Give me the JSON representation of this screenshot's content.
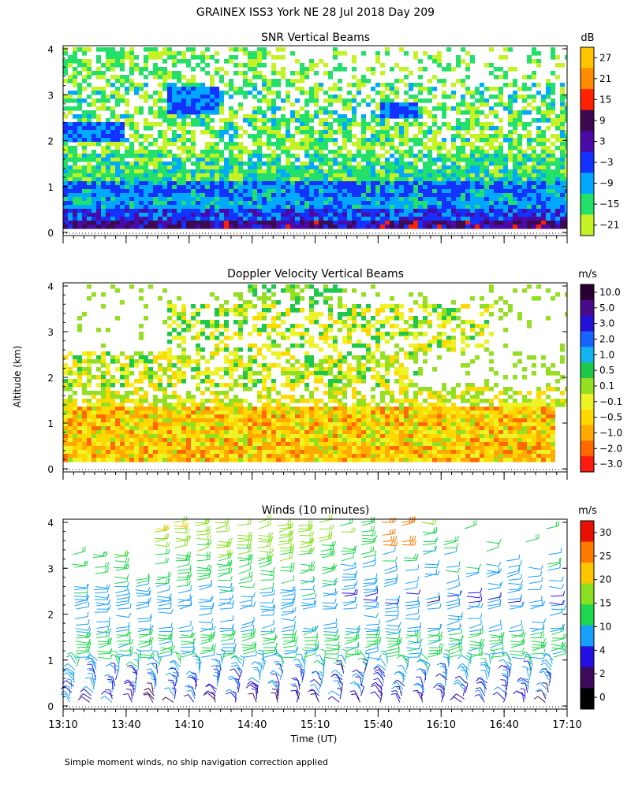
{
  "title": "GRAINEX ISS3 York NE  28 Jul 2018 Day 209",
  "ylabel": "Altitude (km)",
  "xlabel": "Time (UT)",
  "footnote": "Simple moment winds, no ship navigation correction applied",
  "chart_data": [
    {
      "type": "heatmap",
      "title": "SNR Vertical Beams",
      "xlabel": "Time (UT)",
      "ylabel": "Altitude (km)",
      "x_ticks": [
        "13:10",
        "13:40",
        "14:10",
        "14:40",
        "15:10",
        "15:40",
        "16:10",
        "16:40",
        "17:10"
      ],
      "y_ticks": [
        0,
        1,
        2,
        3,
        4
      ],
      "ylim": [
        0,
        4
      ],
      "colorbar_unit": "dB",
      "colorbar_labels": [
        "27",
        "21",
        "15",
        "9",
        "3",
        "−3",
        "−9",
        "−15",
        "−21"
      ],
      "colorbar_colors": [
        "#ffc400",
        "#ff8c00",
        "#ff2200",
        "#3d0a4f",
        "#4a0aa8",
        "#1432ff",
        "#00a9ff",
        "#22e06a",
        "#c5f224"
      ],
      "layers": [
        {
          "altitude_km": [
            0.1,
            0.3
          ],
          "snr_db_range": [
            9,
            27
          ],
          "description_color": "dark purple / red"
        },
        {
          "altitude_km": [
            0.3,
            1.1
          ],
          "snr_db_range": [
            -9,
            3
          ],
          "description_color": "blue / dark blue"
        },
        {
          "altitude_km": [
            1.1,
            1.7
          ],
          "snr_db_range": [
            -21,
            -9
          ],
          "description_color": "green / cyan"
        },
        {
          "altitude_km": [
            1.7,
            4.0
          ],
          "snr_db_range": [
            -21,
            -3
          ],
          "description_color": "patchy green / yellow-green"
        }
      ]
    },
    {
      "type": "heatmap",
      "title": "Doppler Velocity Vertical Beams",
      "xlabel": "Time (UT)",
      "ylabel": "Altitude (km)",
      "x_ticks": [
        "13:10",
        "13:40",
        "14:10",
        "14:40",
        "15:10",
        "15:40",
        "16:10",
        "16:40",
        "17:10"
      ],
      "y_ticks": [
        0,
        1,
        2,
        3,
        4
      ],
      "ylim": [
        0,
        4
      ],
      "colorbar_unit": "m/s",
      "colorbar_labels": [
        "10.0",
        "5.0",
        "3.0",
        "2.0",
        "1.0",
        "0.5",
        "0.1",
        "−0.1",
        "−0.5",
        "−1.0",
        "−2.0",
        "−3.0"
      ],
      "colorbar_colors": [
        "#2a0033",
        "#4a0a8c",
        "#2412d8",
        "#1864ff",
        "#14b4f0",
        "#1ec84a",
        "#94e020",
        "#ecf428",
        "#ffd800",
        "#ffaa00",
        "#ff6a00",
        "#ff1a10"
      ],
      "layers": [
        {
          "altitude_km": [
            0.1,
            1.4
          ],
          "velocity_ms_range": [
            -1.0,
            0.1
          ],
          "description_color": "orange / yellow"
        },
        {
          "altitude_km": [
            1.4,
            4.0
          ],
          "velocity_ms_range": [
            -0.5,
            0.5
          ],
          "description_color": "patchy yellow / green"
        }
      ]
    },
    {
      "type": "wind_barbs",
      "title": "Winds (10 minutes)",
      "xlabel": "Time (UT)",
      "ylabel": "Altitude (km)",
      "x_ticks": [
        "13:10",
        "13:40",
        "14:10",
        "14:40",
        "15:10",
        "15:40",
        "16:10",
        "16:40",
        "17:10"
      ],
      "y_ticks": [
        0,
        1,
        2,
        3,
        4
      ],
      "ylim": [
        0,
        4
      ],
      "colorbar_unit": "m/s",
      "colorbar_labels": [
        "30",
        "25",
        "20",
        "15",
        "10",
        "4",
        "2",
        "0"
      ],
      "colorbar_colors": [
        "#e81000",
        "#ff7800",
        "#ffc400",
        "#8ae020",
        "#1ed84e",
        "#18a0ff",
        "#2410e0",
        "#3e0a5c",
        "#000000"
      ],
      "speed_profile_ms": [
        {
          "altitude_km": 0.5,
          "speed": 3
        },
        {
          "altitude_km": 1.2,
          "speed": 12
        },
        {
          "altitude_km": 2.0,
          "speed": 7
        },
        {
          "altitude_km": 3.0,
          "speed": 13
        },
        {
          "altitude_km": 3.8,
          "speed": 18
        }
      ]
    }
  ]
}
